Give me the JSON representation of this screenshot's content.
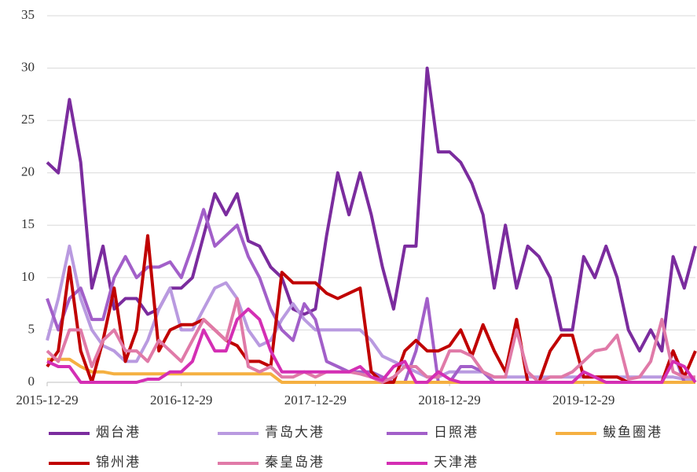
{
  "chart_data": {
    "type": "line",
    "categories": [
      "2015-12-29",
      null,
      null,
      null,
      null,
      null,
      null,
      null,
      null,
      null,
      null,
      null,
      "2016-12-29",
      null,
      null,
      null,
      null,
      null,
      null,
      null,
      null,
      null,
      null,
      null,
      "2017-12-29",
      null,
      null,
      null,
      null,
      null,
      null,
      null,
      null,
      null,
      null,
      null,
      "2018-12-29",
      null,
      null,
      null,
      null,
      null,
      null,
      null,
      null,
      null,
      null,
      null,
      "2019-12-29",
      null,
      null,
      null,
      null,
      null,
      null,
      null,
      null,
      null,
      null
    ],
    "ylim": [
      0,
      35
    ],
    "yticks": [
      0,
      5,
      10,
      15,
      20,
      25,
      30,
      35
    ],
    "grid": true,
    "series": [
      {
        "name": "烟台港",
        "color": "#7b2c9e",
        "values": [
          21,
          20,
          27,
          21,
          9,
          13,
          7,
          8,
          8,
          6.5,
          7,
          9,
          9,
          10,
          14,
          18,
          16,
          18,
          13.5,
          13,
          11,
          10,
          7,
          6.5,
          7,
          14,
          20,
          16,
          20,
          16,
          11,
          7,
          13,
          13,
          30,
          22,
          22,
          21,
          19,
          16,
          9,
          15,
          9,
          13,
          12,
          10,
          5,
          5,
          12,
          10,
          13,
          10,
          5,
          3,
          5,
          3,
          12,
          9,
          13
        ]
      },
      {
        "name": "青岛大港",
        "color": "#b99ae0",
        "values": [
          4,
          8,
          13,
          8,
          5,
          3.5,
          3,
          2,
          2,
          4,
          7,
          9,
          5,
          5,
          7,
          9,
          9.5,
          8,
          5,
          3.5,
          4,
          6,
          7.5,
          6,
          5,
          5,
          5,
          5,
          5,
          4,
          2.5,
          2,
          1.5,
          1,
          0.5,
          0.5,
          1,
          1,
          1,
          1,
          0.5,
          0.5,
          0.5,
          0.5,
          0.5,
          0.5,
          0.5,
          0.5,
          0.5,
          0.5,
          0.5,
          0.5,
          0.5,
          0.5,
          0.5,
          0.5,
          0.5,
          0.3,
          0.3
        ]
      },
      {
        "name": "日照港",
        "color": "#a25fc9",
        "values": [
          8,
          5,
          8,
          9,
          6,
          6,
          10,
          12,
          10,
          11,
          11,
          11.5,
          10,
          13,
          16.5,
          13,
          14,
          15,
          12,
          10,
          7,
          5,
          4,
          7.5,
          6,
          2,
          1.5,
          1,
          1,
          1,
          0.5,
          0,
          0,
          3,
          8,
          0,
          0,
          1.5,
          1.5,
          1,
          0,
          0,
          0,
          0,
          0,
          0,
          0,
          0,
          0,
          0,
          0,
          0,
          0,
          0,
          0,
          0,
          3,
          0,
          0
        ]
      },
      {
        "name": "鲅鱼圈港",
        "color": "#f5b041",
        "values": [
          2.2,
          2.2,
          2.2,
          1.5,
          1,
          1,
          0.8,
          0.8,
          0.8,
          0.8,
          0.8,
          0.8,
          0.8,
          0.8,
          0.8,
          0.8,
          0.8,
          0.8,
          0.8,
          0.8,
          0.8,
          0,
          0,
          0,
          0,
          0,
          0,
          0,
          0,
          0,
          0,
          0,
          0,
          0,
          0,
          0,
          0,
          0,
          0,
          0,
          0,
          0,
          0,
          0,
          0,
          0,
          0,
          0,
          0,
          0,
          0,
          0,
          0,
          0,
          0,
          0,
          0,
          0,
          0
        ]
      },
      {
        "name": "锦州港",
        "color": "#c00000",
        "values": [
          1.5,
          3,
          11,
          3,
          0,
          4,
          9,
          2,
          5,
          14,
          3,
          5,
          5.5,
          5.5,
          6,
          5,
          4,
          3.5,
          2,
          2,
          1.5,
          10.5,
          9.5,
          9.5,
          9.5,
          8.5,
          8,
          8.5,
          9,
          1,
          0,
          0,
          3,
          4,
          3,
          3,
          3.5,
          5,
          2.5,
          5.5,
          3,
          1,
          6,
          0,
          0,
          3,
          4.5,
          4.5,
          0.5,
          0.5,
          0.5,
          0.5,
          0,
          0,
          0,
          0,
          3,
          0.5,
          3
        ]
      },
      {
        "name": "秦皇岛港",
        "color": "#e07aa8",
        "values": [
          3,
          2,
          5,
          5,
          1.5,
          4,
          5,
          3,
          3,
          2,
          4,
          3,
          2,
          4,
          6,
          5,
          4,
          8,
          1.5,
          1,
          1.5,
          0.5,
          0.5,
          1,
          0.5,
          1,
          1,
          1,
          0.8,
          0.5,
          0,
          0.5,
          1.5,
          1.5,
          0.5,
          0.5,
          3,
          3,
          2.5,
          1,
          0.5,
          0.5,
          5,
          1,
          0,
          0.5,
          0.5,
          1,
          2,
          3,
          3.2,
          4.5,
          0.3,
          0.5,
          2,
          6,
          1,
          0.5,
          0.5
        ]
      },
      {
        "name": "天津港",
        "color": "#d42fb4",
        "values": [
          2,
          1.5,
          1.5,
          0,
          0,
          0,
          0,
          0,
          0,
          0.3,
          0.3,
          1,
          1,
          2,
          5,
          3,
          3,
          6,
          7,
          6,
          3,
          1,
          1,
          1,
          1,
          1,
          1,
          1,
          1.5,
          0.5,
          0.2,
          1.5,
          2,
          0,
          0,
          1,
          0.3,
          0,
          0,
          0,
          0,
          0,
          0,
          0,
          0,
          0,
          0,
          0,
          1,
          0.5,
          0,
          0,
          0,
          0,
          0,
          0,
          2,
          1.5,
          0
        ]
      }
    ]
  }
}
